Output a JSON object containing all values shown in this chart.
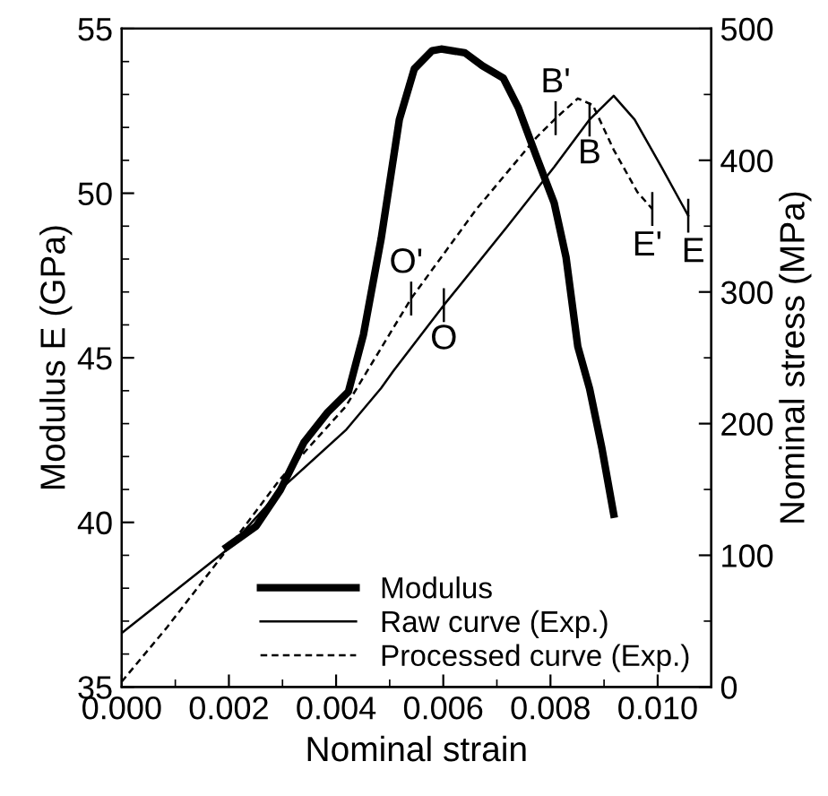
{
  "chart_data": {
    "type": "line",
    "xlabel": "Nominal strain",
    "ylabel": "Modulus E (GPa)",
    "y2label": "Nominal stress (MPa)",
    "xlim": [
      0,
      0.011
    ],
    "xticks": [
      {
        "value": 0,
        "label": "0.000"
      },
      {
        "value": 0.001,
        "label": null
      },
      {
        "value": 0.002,
        "label": "0.002"
      },
      {
        "value": 0.003,
        "label": null
      },
      {
        "value": 0.004,
        "label": "0.004"
      },
      {
        "value": 0.005,
        "label": null
      },
      {
        "value": 0.006,
        "label": "0.006"
      },
      {
        "value": 0.007,
        "label": null
      },
      {
        "value": 0.008,
        "label": "0.008"
      },
      {
        "value": 0.009,
        "label": null
      },
      {
        "value": 0.01,
        "label": "0.010"
      }
    ],
    "ylim": [
      35,
      55
    ],
    "yticks": [
      35,
      {
        "value": 36,
        "label": null
      },
      {
        "value": 37,
        "label": null
      },
      {
        "value": 38,
        "label": null
      },
      {
        "value": 39,
        "label": null
      },
      40,
      {
        "value": 41,
        "label": null
      },
      {
        "value": 42,
        "label": null
      },
      {
        "value": 43,
        "label": null
      },
      {
        "value": 44,
        "label": null
      },
      45,
      {
        "value": 46,
        "label": null
      },
      {
        "value": 47,
        "label": null
      },
      {
        "value": 48,
        "label": null
      },
      {
        "value": 49,
        "label": null
      },
      50,
      {
        "value": 51,
        "label": null
      },
      {
        "value": 52,
        "label": null
      },
      {
        "value": 53,
        "label": null
      },
      {
        "value": 54,
        "label": null
      },
      55
    ],
    "y2lim": [
      0,
      500
    ],
    "y2ticks": [
      0,
      {
        "value": 50,
        "label": null
      },
      100,
      {
        "value": 150,
        "label": null
      },
      200,
      {
        "value": 250,
        "label": null
      },
      300,
      {
        "value": 350,
        "label": null
      },
      400,
      {
        "value": 450,
        "label": null
      },
      500
    ],
    "grid": false,
    "legend": "bottom",
    "marker": "none",
    "series": [
      {
        "name": "Modulus",
        "color": "#000000",
        "line_style": "solid",
        "x": [
          0.00196,
          0.00251,
          0.00296,
          0.0034,
          0.00384,
          0.00423,
          0.00451,
          0.00484,
          0.00518,
          0.00546,
          0.00579,
          0.00596,
          0.0064,
          0.00673,
          0.00712,
          0.0074,
          0.00773,
          0.00807,
          0.00829,
          0.00851,
          0.00873,
          0.00896,
          0.00918
        ],
        "values": [
          39.25,
          39.89,
          40.98,
          42.43,
          43.34,
          43.97,
          45.7,
          48.61,
          52.24,
          53.78,
          54.33,
          54.38,
          54.27,
          53.87,
          53.5,
          52.6,
          51.15,
          49.7,
          48.06,
          45.34,
          44.06,
          42.25,
          40.25
        ]
      },
      {
        "name": "Raw curve (Exp.)",
        "color": "#000000",
        "line_style": "solid",
        "axis": "y2",
        "x": [
          0,
          0.00084,
          0.00196,
          0.00307,
          0.00418,
          0.00484,
          0.00507,
          0.00601,
          0.00718,
          0.00807,
          0.00873,
          0.00918,
          0.00957,
          0.01007,
          0.01057
        ],
        "values": [
          41,
          68,
          104,
          154,
          195,
          227,
          240,
          290,
          349,
          395,
          431,
          449,
          431,
          395,
          358
        ]
      },
      {
        "name": "Processed curve (Exp.)",
        "color": "#000000",
        "line_style": "dashed",
        "axis": "y2",
        "x": [
          0,
          0.00084,
          0.00196,
          0.00296,
          0.00418,
          0.0054,
          0.00662,
          0.00773,
          0.0081,
          0.00851,
          0.00879,
          0.00918,
          0.00962,
          0.0099
        ],
        "values": [
          4,
          45,
          104,
          158,
          213,
          295,
          363,
          417,
          432,
          447,
          442,
          408,
          376,
          363
        ]
      }
    ],
    "annotations": [
      "O'",
      "O",
      "B'",
      "B",
      "E'",
      "E"
    ]
  }
}
